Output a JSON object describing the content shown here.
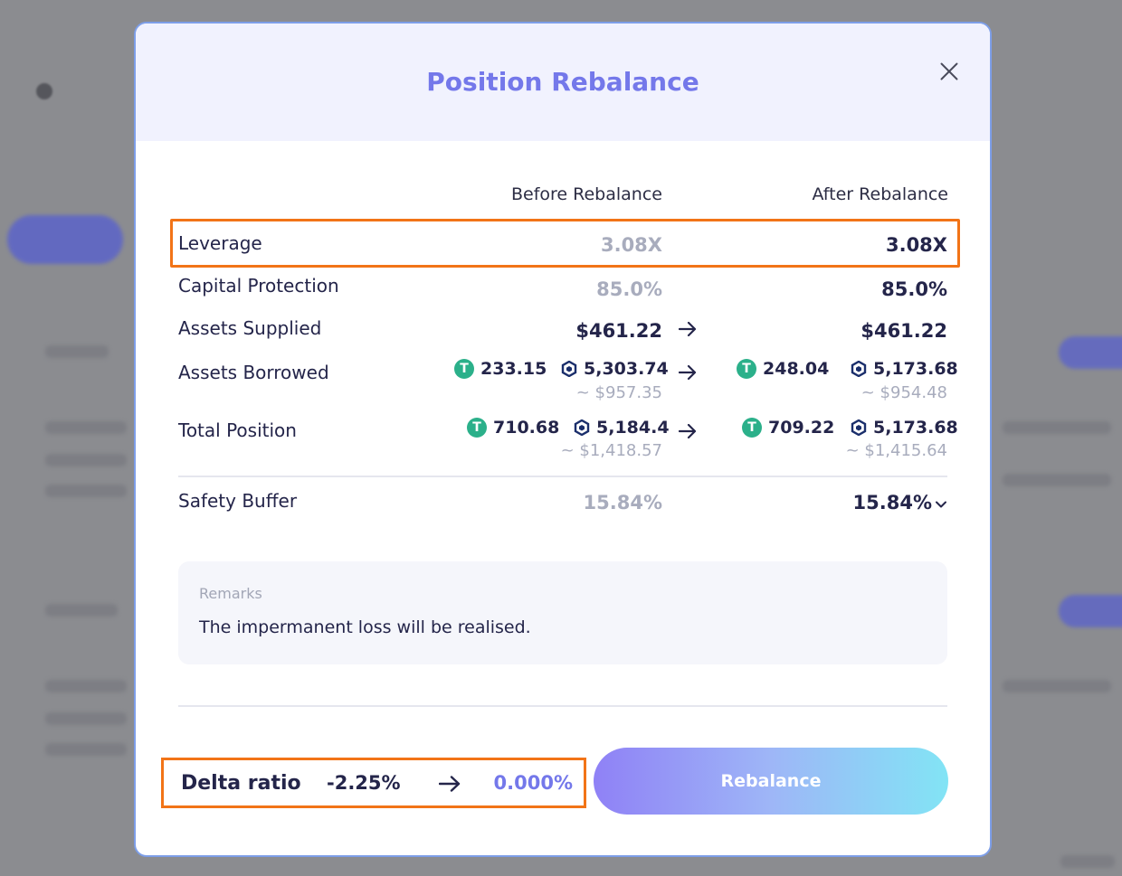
{
  "modal": {
    "title": "Position Rebalance",
    "columns": {
      "before": "Before Rebalance",
      "after": "After Rebalance"
    },
    "leverage": {
      "label": "Leverage",
      "before": "3.08X",
      "after": "3.08X"
    },
    "capital_protection": {
      "label": "Capital Protection",
      "before": "85.0%",
      "after": "85.0%"
    },
    "assets_supplied": {
      "label": "Assets Supplied",
      "before": "$461.22",
      "after": "$461.22"
    },
    "assets_borrowed": {
      "label": "Assets Borrowed",
      "before": {
        "usdt": "233.15",
        "cro": "5,303.74",
        "approx": "~ $957.35"
      },
      "after": {
        "usdt": "248.04",
        "cro": "5,173.68",
        "approx": "~ $954.48"
      }
    },
    "total_position": {
      "label": "Total Position",
      "before": {
        "usdt": "710.68",
        "cro": "5,184.4",
        "approx": "~ $1,418.57"
      },
      "after": {
        "usdt": "709.22",
        "cro": "5,173.68",
        "approx": "~ $1,415.64"
      }
    },
    "safety_buffer": {
      "label": "Safety Buffer",
      "before": "15.84%",
      "after": "15.84%"
    },
    "remarks": {
      "label": "Remarks",
      "text": "The impermanent loss will be realised."
    },
    "delta_ratio": {
      "label": "Delta ratio",
      "before": "-2.25%",
      "after": "0.000%"
    },
    "rebalance_button": "Rebalance"
  },
  "icons": {
    "close": "close-icon",
    "arrow": "arrow-right-icon",
    "usdt": "usdt-icon",
    "cro": "cro-icon",
    "chevron": "chevron-down-icon"
  },
  "colors": {
    "accent": "#7478ea",
    "highlight": "#f27417",
    "usdt": "#2bb08a"
  }
}
